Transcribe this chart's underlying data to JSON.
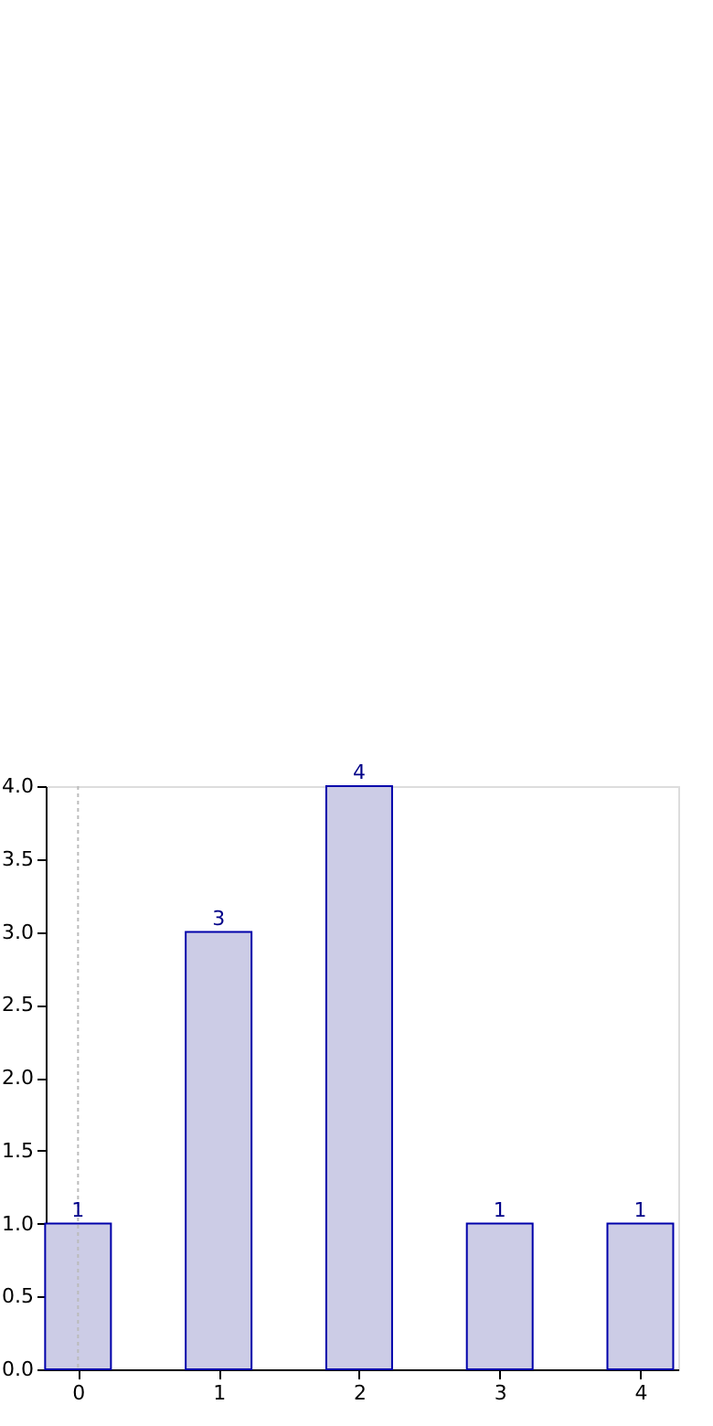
{
  "chart_data": {
    "type": "bar",
    "x": [
      0,
      1,
      2,
      3,
      4
    ],
    "values": [
      1,
      3,
      4,
      1,
      1
    ],
    "color": "#cccce6",
    "data_labels": true,
    "xlim": [
      -0.23,
      4.27
    ],
    "xticks": [
      0,
      1,
      2,
      3,
      4
    ],
    "ylim": [
      0,
      4
    ],
    "yticks": [
      {
        "value": 0,
        "label": "0.0"
      },
      0.5,
      {
        "value": 1,
        "label": "1.0"
      },
      1.5,
      {
        "value": 2,
        "label": "2.0"
      },
      2.5,
      {
        "value": 3,
        "label": "3.0"
      },
      3.5,
      {
        "value": 4,
        "label": "4.0"
      }
    ],
    "ref_lines": [
      {
        "axis": "x",
        "value": 0,
        "color": "#bbbbbb",
        "line_style": "dotted"
      }
    ],
    "grid": false
  }
}
